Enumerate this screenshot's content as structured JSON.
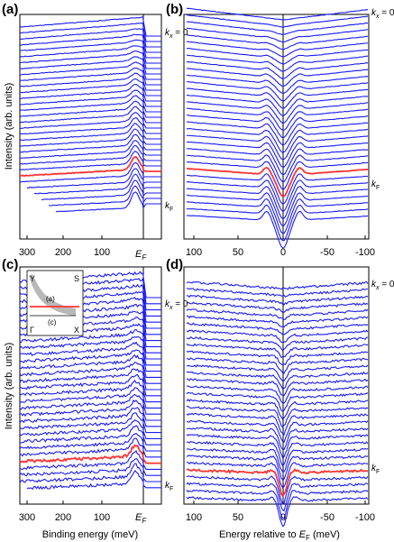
{
  "figure": {
    "ylabel_top": "Intensity (arb. units)",
    "ylabel_bottom": "Intensity (arb. units)",
    "xlabel_left": "Binding energy (meV)",
    "xlabel_right_prefix": "Energy relative to ",
    "xlabel_right_var": "E",
    "xlabel_right_sub": "F",
    "xlabel_right_suffix": " (meV)",
    "ef_main": "E",
    "ef_sub": "F",
    "kx0_var": "k",
    "kx0_sub": "x",
    "kx0_rest": " = 0",
    "kf_var": "k",
    "kf_sub": "F"
  },
  "colors": {
    "trace": "#1a1aff",
    "highlight": "#ff3333",
    "inset_fs": "#b8b8b8"
  },
  "inset": {
    "Y": "Y",
    "S": "S",
    "Gamma": "Γ",
    "X": "X",
    "cut_a": "(a)",
    "cut_c": "(c)"
  },
  "chart_data": [
    {
      "panel": "(a)",
      "type": "line",
      "title": "",
      "xlabel": "",
      "ylabel": "Intensity (arb. units)",
      "x_ticks": [
        "300",
        "200",
        "100",
        "EF"
      ],
      "x_range": [
        320,
        -10
      ],
      "series_count": 32,
      "highlight_index": 25,
      "top_label": "kx = 0",
      "kf_label": "kF",
      "grid": false
    },
    {
      "panel": "(b)",
      "type": "line",
      "title": "",
      "xlabel": "",
      "x_ticks": [
        "100",
        "50",
        "0",
        "-50",
        "-100"
      ],
      "x_range": [
        100,
        -100
      ],
      "series_count": 32,
      "highlight_index": 24,
      "top_label": "kx = 0",
      "kf_label": "kF",
      "grid": false
    },
    {
      "panel": "(c)",
      "type": "line",
      "title": "",
      "xlabel": "Binding energy (meV)",
      "ylabel": "Intensity (arb. units)",
      "x_ticks": [
        "300",
        "200",
        "100",
        "EF"
      ],
      "x_range": [
        320,
        -10
      ],
      "series_count": 32,
      "highlight_index": 27,
      "top_label": "kx = 0",
      "kf_label": "kF",
      "grid": false
    },
    {
      "panel": "(d)",
      "type": "line",
      "title": "",
      "xlabel": "Energy relative to EF (meV)",
      "x_ticks": [
        "100",
        "50",
        "0",
        "-50",
        "-100"
      ],
      "x_range": [
        100,
        -100
      ],
      "series_count": 32,
      "highlight_index": 27,
      "top_label": "kx = 0",
      "kf_label": "kF",
      "grid": false
    }
  ]
}
